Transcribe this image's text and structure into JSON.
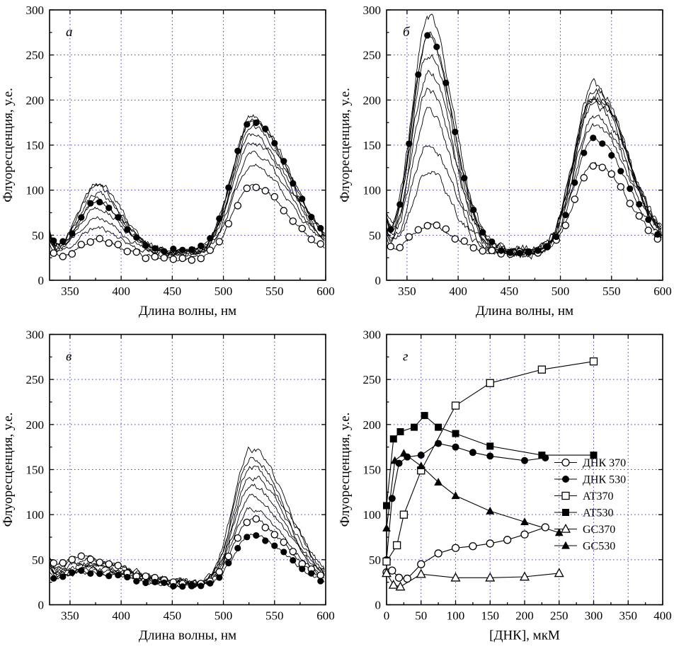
{
  "figure": {
    "background": "#ffffff",
    "grid_color": "#3c3cc8",
    "axis_color": "#000000",
    "curve_color": "#000000"
  },
  "chart_data": [
    {
      "id": "a",
      "panel_label": "а",
      "type": "line",
      "xlabel": "Длина волны, нм",
      "ylabel": "Флуоресценция, у.е.",
      "xlim": [
        330,
        600
      ],
      "ylim": [
        0,
        300
      ],
      "xticks": [
        350,
        400,
        450,
        500,
        550,
        600
      ],
      "yticks": [
        0,
        50,
        100,
        150,
        200,
        250,
        300
      ],
      "peaks": {
        "c1": 376,
        "w1l": 17,
        "w1r": 24,
        "c2": 528,
        "w2l": 19,
        "w2r": 36
      },
      "curves": [
        {
          "base": 28,
          "edge": 16,
          "a1": 30,
          "a2": 100,
          "noise": 2.2,
          "seed": 11
        },
        {
          "base": 29,
          "edge": 18,
          "a1": 42,
          "a2": 112,
          "noise": 2.4,
          "seed": 12
        },
        {
          "base": 30,
          "edge": 20,
          "a1": 52,
          "a2": 122,
          "noise": 2.4,
          "seed": 13
        },
        {
          "base": 30,
          "edge": 22,
          "a1": 60,
          "a2": 130,
          "noise": 2.6,
          "seed": 14
        },
        {
          "base": 31,
          "edge": 18,
          "a1": 66,
          "a2": 138,
          "noise": 2.6,
          "seed": 15
        },
        {
          "base": 31,
          "edge": 20,
          "a1": 72,
          "a2": 144,
          "noise": 2.8,
          "seed": 16
        },
        {
          "base": 32,
          "edge": 22,
          "a1": 76,
          "a2": 150,
          "noise": 2.8,
          "seed": 17
        },
        {
          "marker": "circle-open",
          "base": 24,
          "edge": 16,
          "a1": 20,
          "a2": 80,
          "noise": 1.5,
          "seed": 18
        },
        {
          "marker": "circle-filled",
          "base": 32,
          "edge": 20,
          "a1": 55,
          "a2": 144,
          "noise": 1.5,
          "seed": 19
        }
      ]
    },
    {
      "id": "b",
      "panel_label": "б",
      "type": "line",
      "xlabel": "Длина волны, нм",
      "ylabel": "Флуоресценция, у.е.",
      "xlim": [
        330,
        600
      ],
      "ylim": [
        0,
        300
      ],
      "xticks": [
        350,
        400,
        450,
        500,
        550,
        600
      ],
      "yticks": [
        0,
        50,
        100,
        150,
        200,
        250,
        300
      ],
      "peaks": {
        "c1": 371,
        "w1l": 16,
        "w1r": 24,
        "c2": 533,
        "w2l": 19,
        "w2r": 33
      },
      "curves": [
        {
          "base": 30,
          "edge": 20,
          "a1": 90,
          "a2": 140,
          "noise": 3.4,
          "seed": 21
        },
        {
          "base": 30,
          "edge": 24,
          "a1": 125,
          "a2": 155,
          "noise": 3.6,
          "seed": 22
        },
        {
          "base": 30,
          "edge": 26,
          "a1": 155,
          "a2": 165,
          "noise": 3.8,
          "seed": 23
        },
        {
          "base": 31,
          "edge": 28,
          "a1": 180,
          "a2": 172,
          "noise": 3.8,
          "seed": 24
        },
        {
          "base": 31,
          "edge": 30,
          "a1": 200,
          "a2": 178,
          "noise": 4.0,
          "seed": 25
        },
        {
          "base": 32,
          "edge": 30,
          "a1": 220,
          "a2": 182,
          "noise": 4.0,
          "seed": 26
        },
        {
          "base": 32,
          "edge": 32,
          "a1": 242,
          "a2": 170,
          "noise": 4.2,
          "seed": 27
        },
        {
          "base": 32,
          "edge": 34,
          "a1": 260,
          "a2": 180,
          "noise": 4.2,
          "seed": 28
        },
        {
          "marker": "circle-open",
          "base": 30,
          "edge": 18,
          "a1": 32,
          "a2": 98,
          "noise": 1.8,
          "seed": 29
        },
        {
          "marker": "circle-filled",
          "base": 32,
          "edge": 24,
          "a1": 238,
          "a2": 124,
          "noise": 1.8,
          "seed": 30
        }
      ]
    },
    {
      "id": "v",
      "panel_label": "в",
      "type": "line",
      "xlabel": "Длина волны, нм",
      "ylabel": "Флуоресценция, у.е.",
      "xlim": [
        330,
        600
      ],
      "ylim": [
        0,
        300
      ],
      "xticks": [
        350,
        400,
        450,
        500,
        550,
        600
      ],
      "yticks": [
        0,
        50,
        100,
        150,
        200,
        250,
        300
      ],
      "peaks": {
        "c1": 368,
        "w1l": 26,
        "w1r": 40,
        "c2": 527,
        "w2l": 17,
        "w2r": 34
      },
      "curves": [
        {
          "base": 22,
          "edge": 14,
          "a1": 14,
          "a2": 85,
          "noise": 2.2,
          "seed": 31
        },
        {
          "base": 22,
          "edge": 15,
          "a1": 16,
          "a2": 98,
          "noise": 2.2,
          "seed": 32
        },
        {
          "base": 22,
          "edge": 16,
          "a1": 18,
          "a2": 110,
          "noise": 2.4,
          "seed": 33
        },
        {
          "base": 23,
          "edge": 16,
          "a1": 20,
          "a2": 120,
          "noise": 2.4,
          "seed": 34
        },
        {
          "base": 23,
          "edge": 17,
          "a1": 22,
          "a2": 130,
          "noise": 2.6,
          "seed": 35
        },
        {
          "base": 23,
          "edge": 18,
          "a1": 24,
          "a2": 140,
          "noise": 2.6,
          "seed": 36
        },
        {
          "base": 24,
          "edge": 18,
          "a1": 25,
          "a2": 148,
          "noise": 2.8,
          "seed": 37
        },
        {
          "marker": "circle-open",
          "base": 22,
          "edge": 14,
          "a1": 30,
          "a2": 72,
          "noise": 1.6,
          "seed": 38,
          "c1": 360
        },
        {
          "marker": "circle-filled",
          "base": 20,
          "edge": 12,
          "a1": 16,
          "a2": 58,
          "noise": 1.6,
          "seed": 39
        }
      ]
    },
    {
      "id": "g",
      "panel_label": "г",
      "type": "scatter",
      "xlabel": "[ДНК], мкМ",
      "ylabel": "Флуоресценция, у.е.",
      "xlim": [
        0,
        400
      ],
      "ylim": [
        0,
        300
      ],
      "xticks": [
        0,
        50,
        100,
        150,
        200,
        250,
        300,
        350,
        400
      ],
      "yticks": [
        0,
        50,
        100,
        150,
        200,
        250,
        300
      ],
      "series": [
        {
          "name": "ДНК 370",
          "marker": "circle-open",
          "points": [
            [
              0,
              36
            ],
            [
              8,
              38
            ],
            [
              18,
              30
            ],
            [
              30,
              29
            ],
            [
              50,
              45
            ],
            [
              75,
              57
            ],
            [
              100,
              63
            ],
            [
              125,
              65
            ],
            [
              150,
              68
            ],
            [
              175,
              72
            ],
            [
              200,
              78
            ],
            [
              230,
              86
            ]
          ]
        },
        {
          "name": "ДНК 530",
          "marker": "circle-filled",
          "points": [
            [
              0,
              50
            ],
            [
              8,
              118
            ],
            [
              18,
              157
            ],
            [
              30,
              164
            ],
            [
              50,
              166
            ],
            [
              75,
              179
            ],
            [
              100,
              175
            ],
            [
              125,
              169
            ],
            [
              150,
              165
            ],
            [
              200,
              160
            ],
            [
              230,
              163
            ]
          ]
        },
        {
          "name": "AT370",
          "marker": "square-open",
          "points": [
            [
              0,
              48
            ],
            [
              15,
              66
            ],
            [
              25,
              100
            ],
            [
              50,
              149
            ],
            [
              100,
              221
            ],
            [
              150,
              246
            ],
            [
              225,
              261
            ],
            [
              300,
              270
            ]
          ]
        },
        {
          "name": "AT530",
          "marker": "square-filled",
          "points": [
            [
              0,
              110
            ],
            [
              10,
              184
            ],
            [
              20,
              192
            ],
            [
              40,
              197
            ],
            [
              55,
              210
            ],
            [
              75,
              197
            ],
            [
              100,
              190
            ],
            [
              150,
              176
            ],
            [
              225,
              166
            ],
            [
              300,
              166
            ]
          ]
        },
        {
          "name": "GC370",
          "marker": "triangle-open",
          "points": [
            [
              0,
              35
            ],
            [
              10,
              22
            ],
            [
              20,
              20
            ],
            [
              50,
              34
            ],
            [
              100,
              30
            ],
            [
              150,
              30
            ],
            [
              200,
              31
            ],
            [
              250,
              35
            ]
          ]
        },
        {
          "name": "GC530",
          "marker": "triangle-filled",
          "points": [
            [
              0,
              85
            ],
            [
              12,
              160
            ],
            [
              25,
              168
            ],
            [
              50,
              154
            ],
            [
              75,
              136
            ],
            [
              100,
              121
            ],
            [
              150,
              104
            ],
            [
              200,
              92
            ],
            [
              250,
              80
            ]
          ]
        }
      ],
      "legend": {
        "entries": [
          "ДНК 370",
          "ДНК 530",
          "AT370",
          "AT530",
          "GC370",
          "GC530"
        ]
      }
    }
  ]
}
